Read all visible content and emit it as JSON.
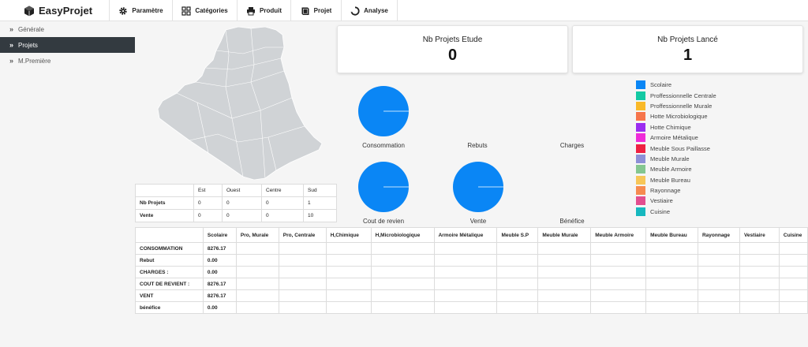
{
  "brand": {
    "name": "EasyProjet",
    "icon": "cube-logo-icon"
  },
  "nav": [
    {
      "label": "Paramètre",
      "icon": "gear-icon"
    },
    {
      "label": "Catégories",
      "icon": "grid-icon"
    },
    {
      "label": "Produit",
      "icon": "printer-icon"
    },
    {
      "label": "Projet",
      "icon": "book-icon"
    },
    {
      "label": "Analyse",
      "icon": "refresh-icon"
    }
  ],
  "sidebar": {
    "items": [
      {
        "label": "Générale",
        "active": false
      },
      {
        "label": "Projets",
        "active": true
      },
      {
        "label": "M.Première",
        "active": false
      }
    ]
  },
  "cards": [
    {
      "title": "Nb Projets Etude",
      "value": "0"
    },
    {
      "title": "Nb Projets Lancé",
      "value": "1"
    }
  ],
  "pies": [
    {
      "label": "Consommation",
      "has_chart": true,
      "color": "#0a86f5"
    },
    {
      "label": "Rebuts",
      "has_chart": false
    },
    {
      "label": "Charges",
      "has_chart": false
    },
    {
      "label": "Cout de revien",
      "has_chart": true,
      "color": "#0a86f5"
    },
    {
      "label": "Vente",
      "has_chart": true,
      "color": "#0a86f5"
    },
    {
      "label": "Bénéfice",
      "has_chart": false
    }
  ],
  "legend": [
    {
      "label": "Scolaire",
      "color": "#0a86f5"
    },
    {
      "label": "Proffessionnelle Centrale",
      "color": "#13c9a3"
    },
    {
      "label": "Proffessionnelle Murale",
      "color": "#f9b928"
    },
    {
      "label": "Hotte Microbiologique",
      "color": "#f6754b"
    },
    {
      "label": "Hotte Chimique",
      "color": "#9b2df0"
    },
    {
      "label": "Armoire Métalique",
      "color": "#ef2cd8"
    },
    {
      "label": "Meuble Sous Paillasse",
      "color": "#ef2142"
    },
    {
      "label": "Meuble Murale",
      "color": "#8d8fd7"
    },
    {
      "label": "Meuble Armoire",
      "color": "#84c690"
    },
    {
      "label": "Meuble Bureau",
      "color": "#f7c657"
    },
    {
      "label": "Rayonnage",
      "color": "#f68a4f"
    },
    {
      "label": "Vestiaire",
      "color": "#e24e8f"
    },
    {
      "label": "Cuisine",
      "color": "#17b8bf"
    }
  ],
  "region_table": {
    "headers": [
      "",
      "Est",
      "Ouest",
      "Centre",
      "Sud"
    ],
    "rows": [
      [
        "Nb Projets",
        "0",
        "0",
        "0",
        "1"
      ],
      [
        "Vente",
        "0",
        "0",
        "0",
        "10"
      ]
    ]
  },
  "main_table": {
    "headers": [
      "",
      "Scolaire",
      "Pro, Murale",
      "Pro, Centrale",
      "H,Chimique",
      "H,Microbiologique",
      "Armoire Métalique",
      "Meuble S.P",
      "Meuble Murale",
      "Meuble Armoire",
      "Meuble Bureau",
      "Rayonnage",
      "Vestiaire",
      "Cuisine"
    ],
    "rows": [
      [
        "CONSOMMATION",
        "8276.17"
      ],
      [
        "Rebut",
        "0.00"
      ],
      [
        "CHARGES :",
        "0.00"
      ],
      [
        "COUT DE REVIENT :",
        "8276.17"
      ],
      [
        "VENT",
        "8276.17"
      ],
      [
        "bénéfice",
        "0.00"
      ]
    ]
  }
}
